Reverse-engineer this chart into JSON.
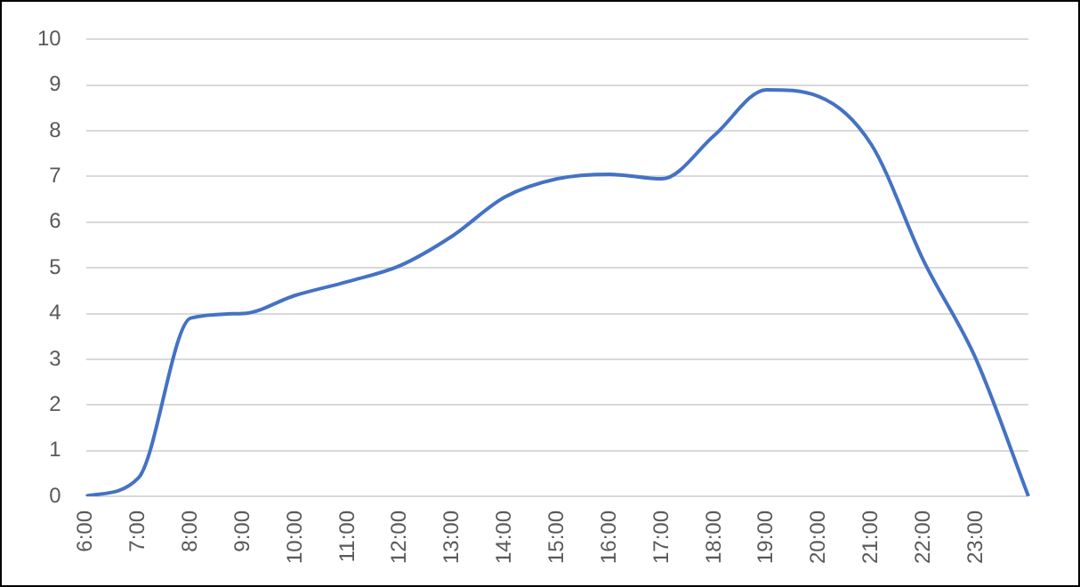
{
  "chart_data": {
    "type": "line",
    "categories": [
      "6:00",
      "7:00",
      "8:00",
      "9:00",
      "10:00",
      "11:00",
      "12:00",
      "13:00",
      "14:00",
      "15:00",
      "16:00",
      "17:00",
      "18:00",
      "19:00",
      "20:00",
      "21:00",
      "22:00",
      "23:00",
      null
    ],
    "series": [
      {
        "color": "#4472c4",
        "values": [
          0,
          0.4,
          3.9,
          4.0,
          4.4,
          4.7,
          5.05,
          5.7,
          6.55,
          6.95,
          7.05,
          6.95,
          7.9,
          8.9,
          8.75,
          7.7,
          5.15,
          3.0,
          0
        ]
      }
    ],
    "ylim": [
      0,
      10
    ],
    "yticks": [
      0,
      1,
      2,
      3,
      4,
      5,
      6,
      7,
      8,
      9,
      10
    ],
    "grid": "y",
    "legend": false,
    "marker": "none",
    "line_style": "solid"
  }
}
